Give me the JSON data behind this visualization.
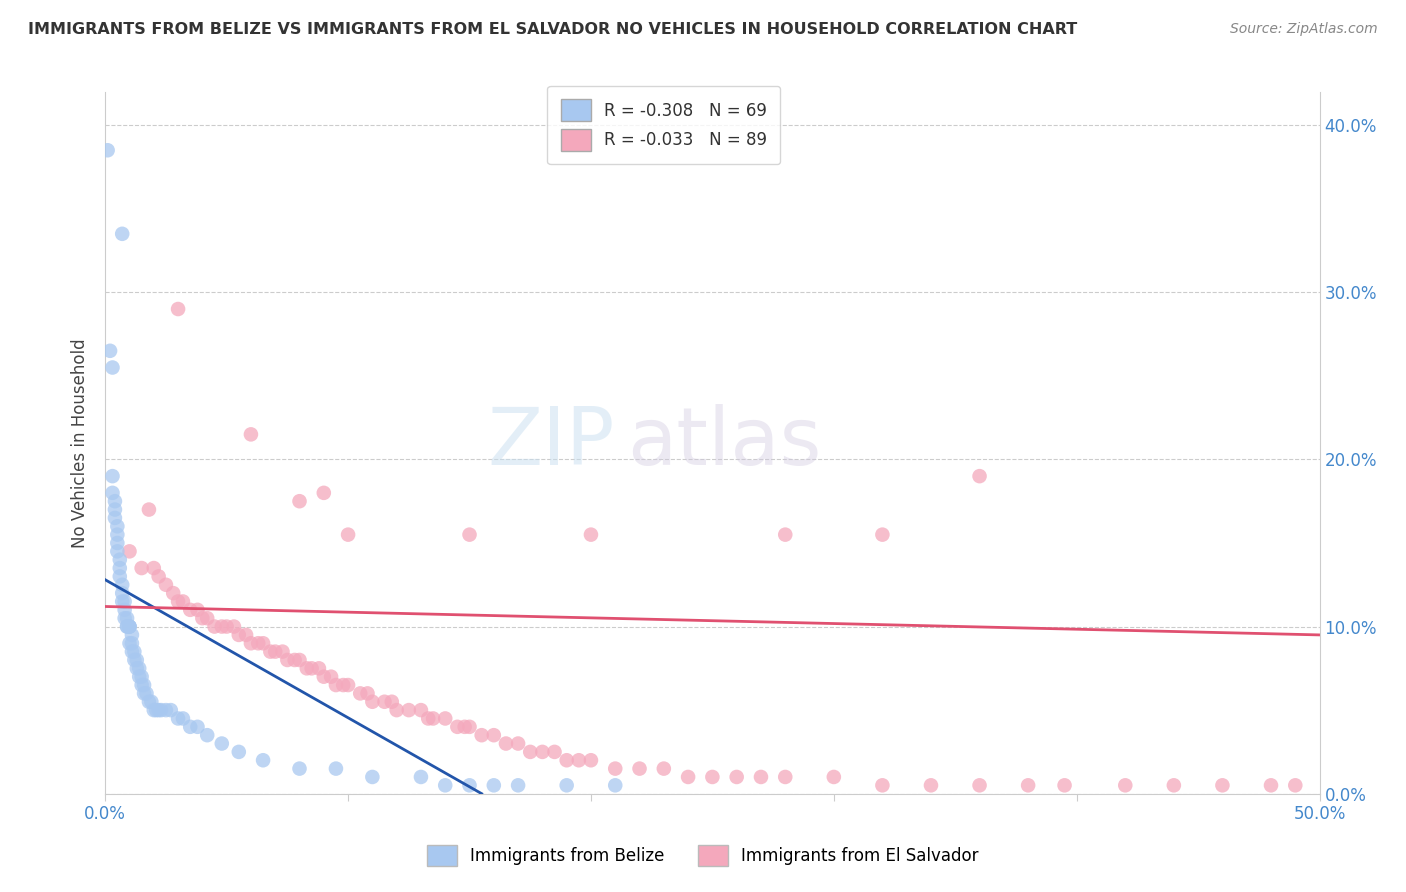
{
  "title": "IMMIGRANTS FROM BELIZE VS IMMIGRANTS FROM EL SALVADOR NO VEHICLES IN HOUSEHOLD CORRELATION CHART",
  "source": "Source: ZipAtlas.com",
  "ylabel": "No Vehicles in Household",
  "belize_R": -0.308,
  "belize_N": 69,
  "salvador_R": -0.033,
  "salvador_N": 89,
  "belize_color": "#a8c8f0",
  "salvador_color": "#f4a8bc",
  "belize_line_color": "#2255aa",
  "salvador_line_color": "#e05070",
  "xlim": [
    0.0,
    0.5
  ],
  "ylim": [
    0.0,
    0.42
  ],
  "belize_scatter_x": [
    0.001,
    0.007,
    0.002,
    0.003,
    0.003,
    0.003,
    0.004,
    0.004,
    0.004,
    0.005,
    0.005,
    0.005,
    0.005,
    0.006,
    0.006,
    0.006,
    0.007,
    0.007,
    0.007,
    0.008,
    0.008,
    0.008,
    0.009,
    0.009,
    0.009,
    0.01,
    0.01,
    0.01,
    0.01,
    0.011,
    0.011,
    0.011,
    0.012,
    0.012,
    0.013,
    0.013,
    0.014,
    0.014,
    0.015,
    0.015,
    0.016,
    0.016,
    0.017,
    0.018,
    0.019,
    0.02,
    0.021,
    0.022,
    0.023,
    0.025,
    0.027,
    0.03,
    0.032,
    0.035,
    0.038,
    0.042,
    0.048,
    0.055,
    0.065,
    0.08,
    0.095,
    0.11,
    0.13,
    0.15,
    0.16,
    0.17,
    0.19,
    0.21,
    0.14
  ],
  "belize_scatter_y": [
    0.385,
    0.335,
    0.265,
    0.255,
    0.19,
    0.18,
    0.175,
    0.17,
    0.165,
    0.16,
    0.155,
    0.15,
    0.145,
    0.14,
    0.135,
    0.13,
    0.125,
    0.12,
    0.115,
    0.115,
    0.11,
    0.105,
    0.105,
    0.1,
    0.1,
    0.1,
    0.1,
    0.1,
    0.09,
    0.095,
    0.09,
    0.085,
    0.085,
    0.08,
    0.08,
    0.075,
    0.075,
    0.07,
    0.07,
    0.065,
    0.065,
    0.06,
    0.06,
    0.055,
    0.055,
    0.05,
    0.05,
    0.05,
    0.05,
    0.05,
    0.05,
    0.045,
    0.045,
    0.04,
    0.04,
    0.035,
    0.03,
    0.025,
    0.02,
    0.015,
    0.015,
    0.01,
    0.01,
    0.005,
    0.005,
    0.005,
    0.005,
    0.005,
    0.005
  ],
  "salvador_scatter_x": [
    0.01,
    0.015,
    0.018,
    0.02,
    0.022,
    0.025,
    0.028,
    0.03,
    0.032,
    0.035,
    0.038,
    0.04,
    0.042,
    0.045,
    0.048,
    0.05,
    0.053,
    0.055,
    0.058,
    0.06,
    0.063,
    0.065,
    0.068,
    0.07,
    0.073,
    0.075,
    0.078,
    0.08,
    0.083,
    0.085,
    0.088,
    0.09,
    0.093,
    0.095,
    0.098,
    0.1,
    0.105,
    0.108,
    0.11,
    0.115,
    0.118,
    0.12,
    0.125,
    0.13,
    0.133,
    0.135,
    0.14,
    0.145,
    0.148,
    0.15,
    0.155,
    0.16,
    0.165,
    0.17,
    0.175,
    0.18,
    0.185,
    0.19,
    0.195,
    0.2,
    0.21,
    0.22,
    0.23,
    0.24,
    0.25,
    0.26,
    0.27,
    0.28,
    0.3,
    0.32,
    0.34,
    0.36,
    0.38,
    0.395,
    0.42,
    0.44,
    0.46,
    0.48,
    0.49,
    0.09,
    0.15,
    0.2,
    0.28,
    0.32,
    0.36,
    0.03,
    0.06,
    0.08,
    0.1
  ],
  "salvador_scatter_y": [
    0.145,
    0.135,
    0.17,
    0.135,
    0.13,
    0.125,
    0.12,
    0.115,
    0.115,
    0.11,
    0.11,
    0.105,
    0.105,
    0.1,
    0.1,
    0.1,
    0.1,
    0.095,
    0.095,
    0.09,
    0.09,
    0.09,
    0.085,
    0.085,
    0.085,
    0.08,
    0.08,
    0.08,
    0.075,
    0.075,
    0.075,
    0.07,
    0.07,
    0.065,
    0.065,
    0.065,
    0.06,
    0.06,
    0.055,
    0.055,
    0.055,
    0.05,
    0.05,
    0.05,
    0.045,
    0.045,
    0.045,
    0.04,
    0.04,
    0.04,
    0.035,
    0.035,
    0.03,
    0.03,
    0.025,
    0.025,
    0.025,
    0.02,
    0.02,
    0.02,
    0.015,
    0.015,
    0.015,
    0.01,
    0.01,
    0.01,
    0.01,
    0.01,
    0.01,
    0.005,
    0.005,
    0.005,
    0.005,
    0.005,
    0.005,
    0.005,
    0.005,
    0.005,
    0.005,
    0.18,
    0.155,
    0.155,
    0.155,
    0.155,
    0.19,
    0.29,
    0.215,
    0.175,
    0.155
  ],
  "belize_line_x": [
    0.0,
    0.155
  ],
  "belize_line_y": [
    0.128,
    0.0
  ],
  "salvador_line_x": [
    0.0,
    0.5
  ],
  "salvador_line_y": [
    0.112,
    0.095
  ]
}
